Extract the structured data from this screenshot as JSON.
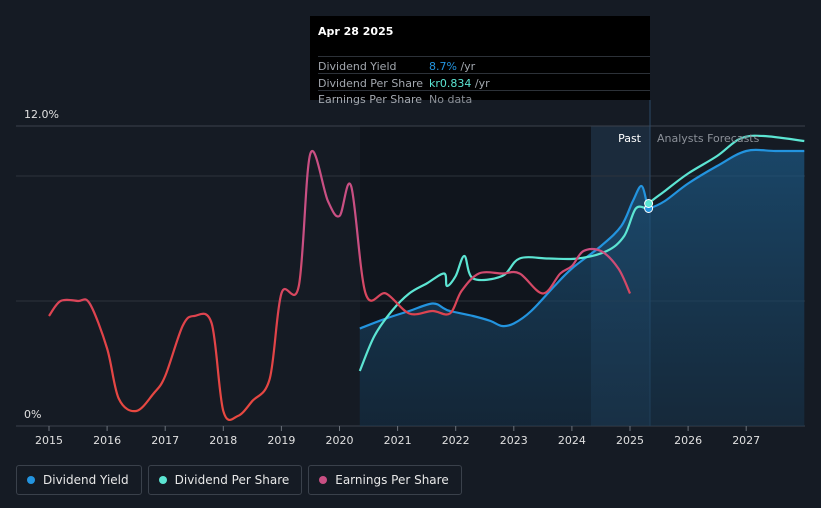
{
  "tooltip": {
    "date": "Apr 28 2025",
    "rows": [
      {
        "label": "Dividend Yield",
        "value": "8.7%",
        "unit": " /yr",
        "color": "#2394df"
      },
      {
        "label": "Dividend Per Share",
        "value": "kr0.834",
        "unit": " /yr",
        "color": "#5ce5d3"
      },
      {
        "label": "Earnings Per Share",
        "value": "No data",
        "unit": "",
        "color": "#8a8f96"
      }
    ]
  },
  "annotations": {
    "past": "Past",
    "forecast": "Analysts Forecasts"
  },
  "legend": [
    {
      "label": "Dividend Yield",
      "color": "#2394df"
    },
    {
      "label": "Dividend Per Share",
      "color": "#5ce5d3"
    },
    {
      "label": "Earnings Per Share",
      "color": "#c94f83"
    }
  ],
  "chart_data": {
    "type": "line",
    "x_ticks": [
      "2015",
      "2016",
      "2017",
      "2018",
      "2019",
      "2020",
      "2021",
      "2022",
      "2023",
      "2024",
      "2025",
      "2026",
      "2027"
    ],
    "y_ticks": [
      "0%",
      "12.0%"
    ],
    "ylim": [
      0,
      12
    ],
    "forecast_start": 2025.32,
    "series": [
      {
        "name": "Dividend Yield",
        "color": "#2394df",
        "points": [
          [
            2020.35,
            3.9
          ],
          [
            2020.8,
            4.3
          ],
          [
            2021.2,
            4.6
          ],
          [
            2021.6,
            4.9
          ],
          [
            2021.8,
            4.7
          ],
          [
            2021.9,
            4.6
          ],
          [
            2022.3,
            4.4
          ],
          [
            2022.6,
            4.2
          ],
          [
            2022.8,
            4.0
          ],
          [
            2023.0,
            4.1
          ],
          [
            2023.3,
            4.6
          ],
          [
            2023.7,
            5.6
          ],
          [
            2024.0,
            6.3
          ],
          [
            2024.5,
            7.2
          ],
          [
            2024.85,
            8.0
          ],
          [
            2025.05,
            9.0
          ],
          [
            2025.2,
            9.6
          ],
          [
            2025.3,
            8.8
          ],
          [
            2025.32,
            8.7
          ],
          [
            2025.6,
            9.0
          ],
          [
            2026.0,
            9.7
          ],
          [
            2026.5,
            10.4
          ],
          [
            2027.0,
            11.0
          ],
          [
            2027.5,
            11.0
          ],
          [
            2028.0,
            11.0
          ]
        ]
      },
      {
        "name": "Dividend Per Share",
        "color": "#5ce5d3",
        "points": [
          [
            2020.35,
            2.2
          ],
          [
            2020.6,
            3.6
          ],
          [
            2020.9,
            4.6
          ],
          [
            2021.2,
            5.3
          ],
          [
            2021.5,
            5.7
          ],
          [
            2021.8,
            6.1
          ],
          [
            2021.85,
            5.6
          ],
          [
            2022.0,
            6.0
          ],
          [
            2022.15,
            6.8
          ],
          [
            2022.3,
            5.9
          ],
          [
            2022.8,
            6.0
          ],
          [
            2023.1,
            6.7
          ],
          [
            2023.6,
            6.7
          ],
          [
            2024.1,
            6.7
          ],
          [
            2024.6,
            7.0
          ],
          [
            2024.9,
            7.6
          ],
          [
            2025.1,
            8.7
          ],
          [
            2025.3,
            8.7
          ],
          [
            2025.32,
            8.9
          ],
          [
            2025.6,
            9.4
          ],
          [
            2026.0,
            10.1
          ],
          [
            2026.5,
            10.8
          ],
          [
            2026.9,
            11.5
          ],
          [
            2027.3,
            11.6
          ],
          [
            2028.0,
            11.4
          ]
        ]
      },
      {
        "name": "Earnings Per Share",
        "color": "#c94f83",
        "points": [
          [
            2015.0,
            4.4
          ],
          [
            2015.2,
            5.0
          ],
          [
            2015.5,
            5.0
          ],
          [
            2015.7,
            4.9
          ],
          [
            2016.0,
            3.1
          ],
          [
            2016.2,
            1.1
          ],
          [
            2016.5,
            0.6
          ],
          [
            2016.8,
            1.3
          ],
          [
            2017.0,
            2.0
          ],
          [
            2017.3,
            4.0
          ],
          [
            2017.5,
            4.4
          ],
          [
            2017.8,
            4.1
          ],
          [
            2018.0,
            0.6
          ],
          [
            2018.25,
            0.4
          ],
          [
            2018.5,
            1.0
          ],
          [
            2018.8,
            1.9
          ],
          [
            2019.0,
            5.3
          ],
          [
            2019.3,
            5.6
          ],
          [
            2019.5,
            10.9
          ],
          [
            2019.8,
            9.0
          ],
          [
            2020.0,
            8.4
          ],
          [
            2020.2,
            9.6
          ],
          [
            2020.45,
            5.3
          ],
          [
            2020.8,
            5.3
          ],
          [
            2021.2,
            4.5
          ],
          [
            2021.6,
            4.6
          ],
          [
            2021.9,
            4.5
          ],
          [
            2022.1,
            5.4
          ],
          [
            2022.4,
            6.1
          ],
          [
            2022.8,
            6.1
          ],
          [
            2023.1,
            6.1
          ],
          [
            2023.5,
            5.3
          ],
          [
            2023.8,
            6.1
          ],
          [
            2024.0,
            6.4
          ],
          [
            2024.2,
            7.0
          ],
          [
            2024.5,
            7.0
          ],
          [
            2024.8,
            6.3
          ],
          [
            2025.0,
            5.3
          ]
        ]
      }
    ]
  }
}
